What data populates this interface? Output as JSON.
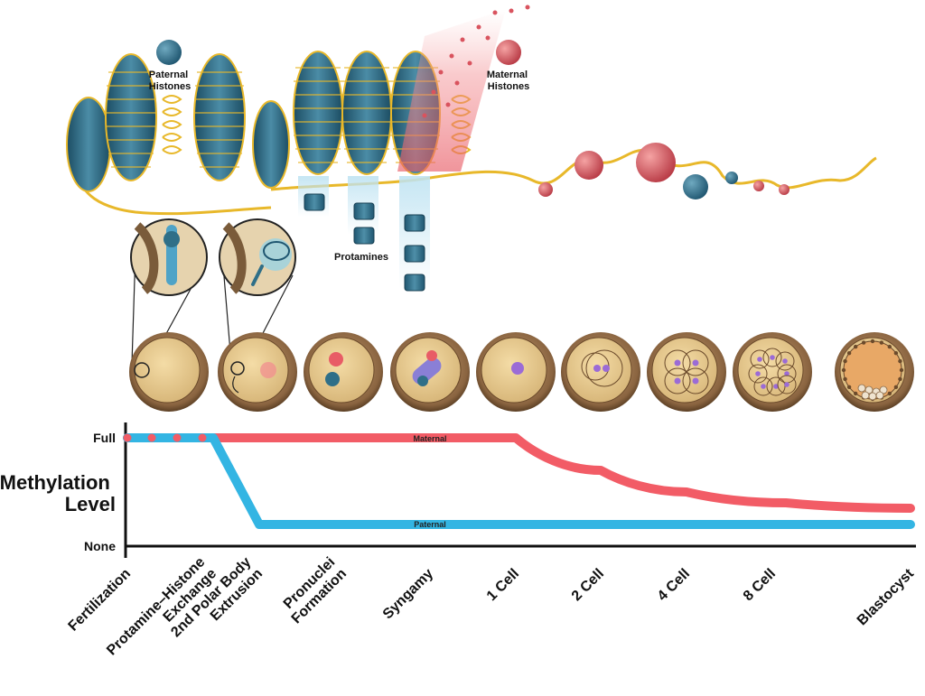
{
  "labels": {
    "paternal_histones": [
      "Paternal",
      "Histones"
    ],
    "maternal_histones": [
      "Maternal",
      "Histones"
    ],
    "protamines": "Protamines"
  },
  "methylation": {
    "title": [
      "Methylation",
      "Level"
    ],
    "full": "Full",
    "none": "None",
    "maternal_line": "Maternal",
    "paternal_line": "Paternal"
  },
  "stages": [
    [
      "Fertilization"
    ],
    [
      "Protamine–Histone",
      "Exchange"
    ],
    [
      "2nd Polar Body",
      "Extrusion"
    ],
    [
      "Pronuclei",
      "Formation"
    ],
    [
      "Syngamy"
    ],
    [
      "1 Cell"
    ],
    [
      "2 Cell"
    ],
    [
      "4 Cell"
    ],
    [
      "8 Cell"
    ],
    [
      "Blastocyst"
    ]
  ],
  "colors": {
    "maternal": "#f25c66",
    "paternal": "#33b5e3",
    "histone_paternal": "#2f6f88",
    "histone_maternal": "#d9535e",
    "dna": "#e8b82a",
    "cell_shell": "#a07a52",
    "cell_interior": "#e9c98f",
    "axis": "#111111"
  },
  "chart_data": {
    "type": "line",
    "categories": [
      "Fertilization",
      "Protamine–Histone Exchange",
      "2nd Polar Body Extrusion",
      "Pronuclei Formation",
      "Syngamy",
      "1 Cell",
      "2 Cell",
      "4 Cell",
      "8 Cell",
      "Blastocyst"
    ],
    "ylabel": "Methylation Level",
    "yticks": [
      "None",
      "Full"
    ],
    "ylim": [
      0,
      1
    ],
    "series": [
      {
        "name": "Maternal",
        "values": [
          1.0,
          1.0,
          1.0,
          1.0,
          1.0,
          1.0,
          0.7,
          0.5,
          0.4,
          0.35
        ]
      },
      {
        "name": "Paternal",
        "values": [
          1.0,
          1.0,
          0.2,
          0.2,
          0.2,
          0.2,
          0.2,
          0.2,
          0.2,
          0.2
        ]
      }
    ]
  }
}
